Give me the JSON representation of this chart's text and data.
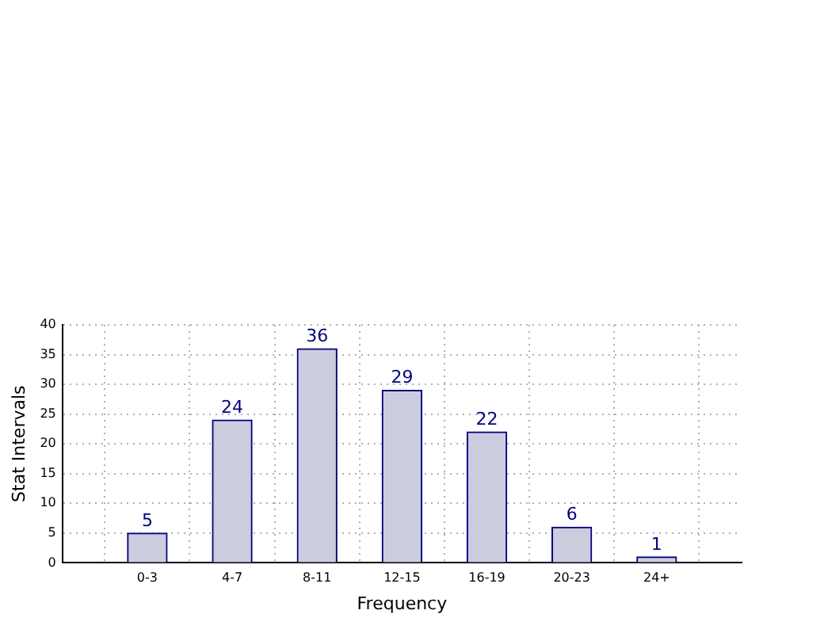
{
  "chart_data": {
    "type": "bar",
    "xlabel": "Frequency",
    "ylabel": "Stat Intervals",
    "categories": [
      "0-3",
      "4-7",
      "8-11",
      "12-15",
      "16-19",
      "20-23",
      "24+"
    ],
    "values": [
      5,
      24,
      36,
      29,
      22,
      6,
      1
    ],
    "color": "#ccccdf",
    "ylim": [
      0,
      40
    ],
    "yticks": [
      0,
      5,
      10,
      15,
      20,
      25,
      30,
      35,
      40
    ],
    "grid": true,
    "data_labels": true
  }
}
